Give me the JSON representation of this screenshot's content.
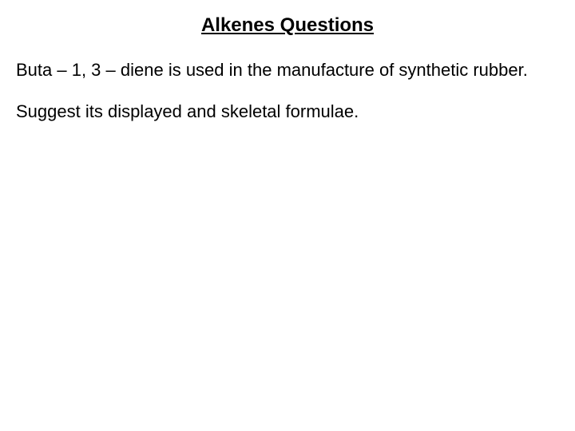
{
  "slide": {
    "title": "Alkenes Questions",
    "paragraph1": "Buta – 1, 3 – diene is used in the manufacture of synthetic rubber.",
    "paragraph2": "Suggest its displayed and skeletal formulae."
  },
  "style": {
    "background_color": "#ffffff",
    "text_color": "#000000",
    "title_fontsize": 24,
    "body_fontsize": 22,
    "font_family": "Verdana"
  }
}
